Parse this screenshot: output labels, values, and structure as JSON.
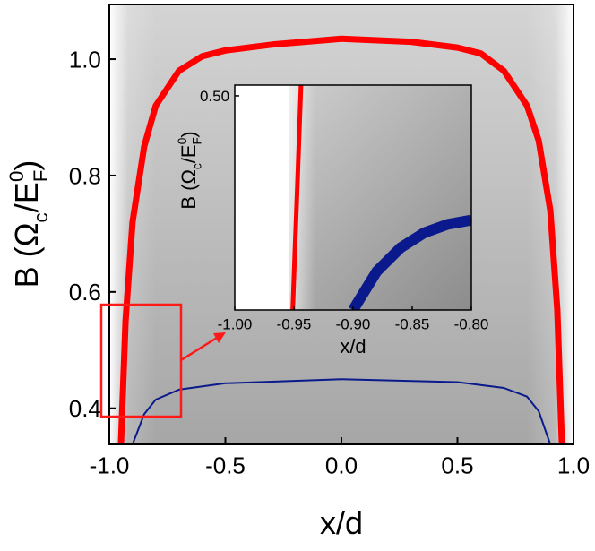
{
  "chart_data": [
    {
      "type": "line",
      "xlabel": "x/d",
      "ylabel": [
        "B (Ω",
        "c",
        "/E",
        "F",
        "0",
        ")"
      ],
      "xlim": [
        -1,
        1
      ],
      "ylim": [
        0.338,
        1.094
      ],
      "xticks": [
        {
          "value": -1,
          "label": "-1.0"
        },
        -0.5,
        {
          "value": 0,
          "label": "0.0"
        },
        0.5,
        {
          "value": 1,
          "label": "1.0"
        }
      ],
      "yticks": [
        0.4,
        0.6,
        0.8,
        {
          "value": 1,
          "label": "1.0"
        }
      ],
      "series": [
        {
          "color": "#ff0000",
          "line_width": 7,
          "x": [
            -0.95,
            -0.93,
            -0.9,
            -0.85,
            -0.8,
            -0.7,
            -0.6,
            -0.5,
            -0.3,
            0,
            0.3,
            0.5,
            0.6,
            0.7,
            0.8,
            0.85,
            0.9,
            0.93,
            0.95
          ],
          "values": [
            0.34,
            0.55,
            0.72,
            0.85,
            0.92,
            0.98,
            1.005,
            1.015,
            1.025,
            1.035,
            1.03,
            1.02,
            1.01,
            0.98,
            0.92,
            0.86,
            0.74,
            0.57,
            0.34
          ]
        },
        {
          "color": "#0a1a8c",
          "line_width": 2,
          "x": [
            -0.9,
            -0.85,
            -0.8,
            -0.7,
            -0.5,
            0,
            0.5,
            0.7,
            0.8,
            0.85,
            0.9
          ],
          "values": [
            0.338,
            0.39,
            0.415,
            0.432,
            0.443,
            0.45,
            0.445,
            0.435,
            0.42,
            0.395,
            0.338
          ]
        }
      ]
    },
    {
      "type": "line",
      "xlabel": "x/d",
      "ylabel": [
        "B (Ω",
        "c",
        "/E",
        "F",
        "0",
        ")"
      ],
      "xlim": [
        -1,
        -0.8
      ],
      "ylim": [
        0.4,
        0.505
      ],
      "xticks": [
        {
          "value": -1,
          "label": "-1.00"
        },
        -0.95,
        {
          "value": -0.9,
          "label": "-0.90"
        },
        -0.85,
        {
          "value": -0.8,
          "label": "-0.80"
        }
      ],
      "yticks": [
        {
          "value": 0.5,
          "label": "0.50"
        }
      ],
      "series": [
        {
          "color": "#ff0000",
          "line_width": 5,
          "x": [
            -0.951,
            -0.949,
            -0.947,
            -0.945,
            -0.944
          ],
          "values": [
            0.4,
            0.43,
            0.46,
            0.49,
            0.505
          ]
        },
        {
          "color": "#0a1a8c",
          "line_width": 12,
          "x": [
            -0.9,
            -0.88,
            -0.86,
            -0.84,
            -0.82,
            -0.8
          ],
          "values": [
            0.4,
            0.418,
            0.429,
            0.436,
            0.44,
            0.442
          ]
        }
      ]
    }
  ]
}
